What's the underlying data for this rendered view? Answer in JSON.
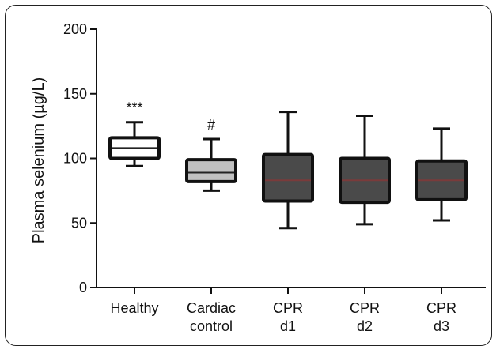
{
  "chart_data": {
    "type": "boxplot",
    "ylabel": "Plasma selenium (µg/L)",
    "ylim": [
      0,
      200
    ],
    "yticks": [
      0,
      50,
      100,
      150,
      200
    ],
    "grid": false,
    "categories": [
      {
        "line1": "Healthy",
        "line2": ""
      },
      {
        "line1": "Cardiac",
        "line2": "control"
      },
      {
        "line1": "CPR",
        "line2": "d1"
      },
      {
        "line1": "CPR",
        "line2": "d2"
      },
      {
        "line1": "CPR",
        "line2": "d3"
      }
    ],
    "boxes": [
      {
        "min": 94,
        "q1": 100,
        "median": 108,
        "q3": 116,
        "max": 128,
        "fill": "#ffffff",
        "median_color": "#222222",
        "annotation": "***"
      },
      {
        "min": 75,
        "q1": 82,
        "median": 89,
        "q3": 99,
        "max": 115,
        "fill": "#c0c0c0",
        "median_color": "#222222",
        "annotation": "#"
      },
      {
        "min": 46,
        "q1": 67,
        "median": 83,
        "q3": 103,
        "max": 136,
        "fill": "#4a4a4a",
        "median_color": "#7a3b3b",
        "annotation": ""
      },
      {
        "min": 49,
        "q1": 66,
        "median": 83,
        "q3": 100,
        "max": 133,
        "fill": "#4a4a4a",
        "median_color": "#7a3b3b",
        "annotation": ""
      },
      {
        "min": 52,
        "q1": 68,
        "median": 83,
        "q3": 98,
        "max": 123,
        "fill": "#4a4a4a",
        "median_color": "#7a3b3b",
        "annotation": ""
      }
    ]
  }
}
